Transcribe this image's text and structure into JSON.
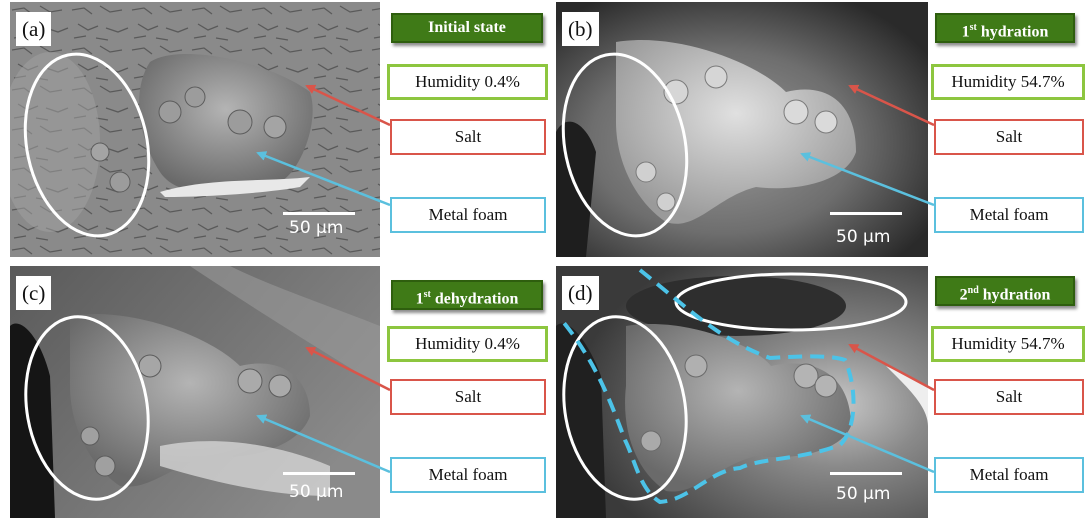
{
  "panels": [
    {
      "letter": "(a)",
      "state_main": "Initial state",
      "state_sup": "",
      "state_rest": "",
      "humidity": "Humidity 0.4%",
      "salt": "Salt",
      "foam": "Metal foam",
      "scale": "50 μm"
    },
    {
      "letter": "(b)",
      "state_main": "1",
      "state_sup": "st",
      "state_rest": " hydration",
      "humidity": "Humidity 54.7%",
      "salt": "Salt",
      "foam": "Metal foam",
      "scale": "50 μm"
    },
    {
      "letter": "(c)",
      "state_main": "1",
      "state_sup": "st",
      "state_rest": " dehydration",
      "humidity": "Humidity 0.4%",
      "salt": "Salt",
      "foam": "Metal foam",
      "scale": "50 μm"
    },
    {
      "letter": "(d)",
      "state_main": "2",
      "state_sup": "nd",
      "state_rest": "  hydration",
      "humidity": "Humidity 54.7%",
      "salt": "Salt",
      "foam": "Metal foam",
      "scale": "50 μm"
    }
  ],
  "colors": {
    "state_bg": "#3f7a17",
    "humidity_border": "#8dc63f",
    "salt_color": "#d9554a",
    "foam_color": "#5bc0de",
    "circle": "#ffffff"
  }
}
